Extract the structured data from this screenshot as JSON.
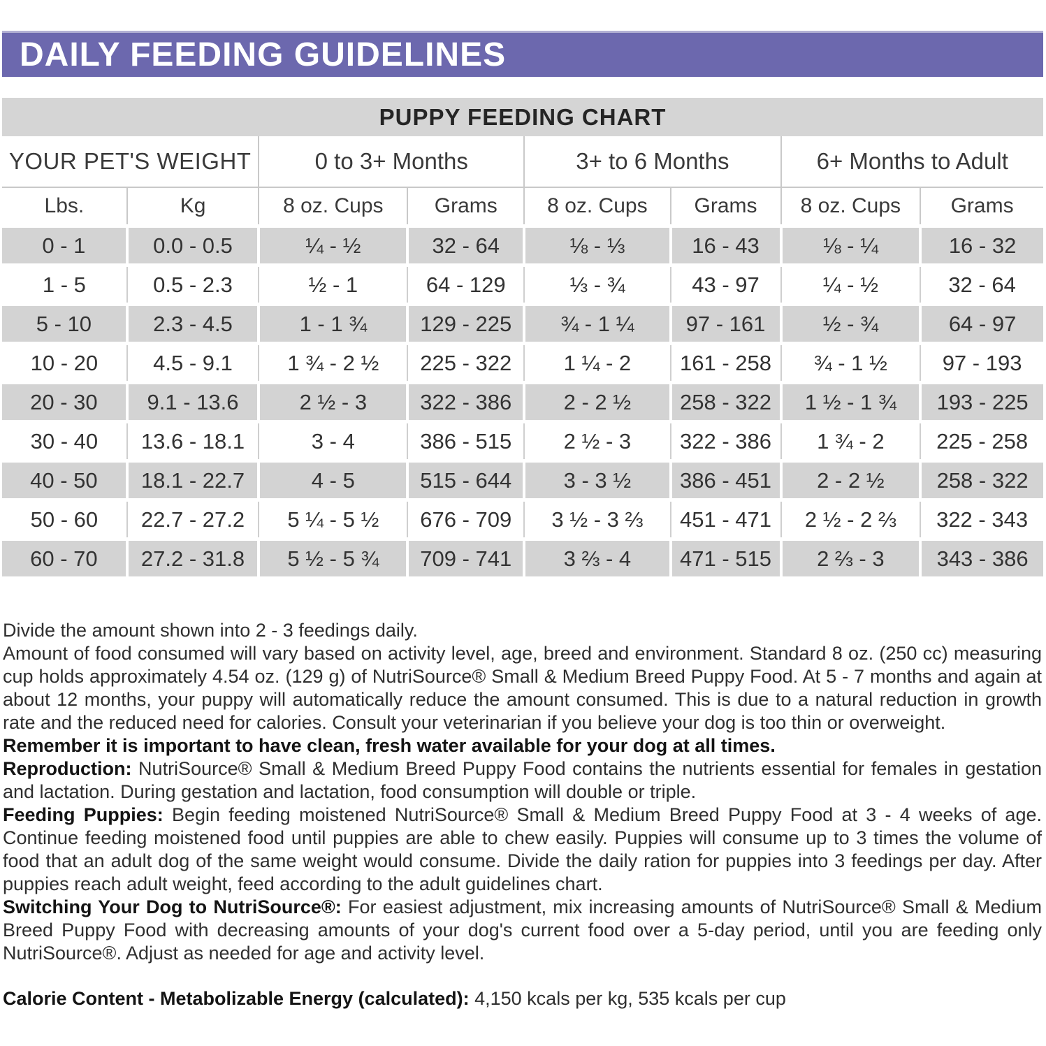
{
  "page_title": "DAILY FEEDING GUIDELINES",
  "colors": {
    "accent_purple": "#6c68ae",
    "bar_gray": "#d5d5d5",
    "row_gray": "#d3d3d3"
  },
  "chart": {
    "title": "PUPPY FEEDING CHART",
    "weight_header": "YOUR PET'S WEIGHT",
    "group_headers": [
      "0 to 3+ Months",
      "3+ to 6 Months",
      "6+ Months to Adult"
    ],
    "sub_headers": [
      "Lbs.",
      "Kg",
      "8 oz. Cups",
      "Grams",
      "8 oz. Cups",
      "Grams",
      "8 oz. Cups",
      "Grams"
    ],
    "rows": [
      [
        "0 - 1",
        "0.0 - 0.5",
        "¼ - ½",
        "32 - 64",
        "⅛ - ⅓",
        "16 - 43",
        "⅛ - ¼",
        "16 - 32"
      ],
      [
        "1 - 5",
        "0.5 - 2.3",
        "½ - 1",
        "64 - 129",
        "⅓ - ¾",
        "43 - 97",
        "¼ - ½",
        "32 - 64"
      ],
      [
        "5 - 10",
        "2.3 - 4.5",
        "1 - 1 ¾",
        "129 - 225",
        "¾ - 1 ¼",
        "97 - 161",
        "½ - ¾",
        "64 - 97"
      ],
      [
        "10 - 20",
        "4.5 - 9.1",
        "1 ¾ - 2 ½",
        "225 - 322",
        "1 ¼ - 2",
        "161 - 258",
        "¾ - 1 ½",
        "97 - 193"
      ],
      [
        "20 - 30",
        "9.1 - 13.6",
        "2 ½ - 3",
        "322 - 386",
        "2 - 2 ½",
        "258 - 322",
        "1 ½ - 1 ¾",
        "193 - 225"
      ],
      [
        "30 - 40",
        "13.6 - 18.1",
        "3 - 4",
        "386 - 515",
        "2 ½ - 3",
        "322 - 386",
        "1 ¾ - 2",
        "225 - 258"
      ],
      [
        "40 - 50",
        "18.1 - 22.7",
        "4 - 5",
        "515 - 644",
        "3 - 3 ½",
        "386 - 451",
        "2 - 2 ½",
        "258 - 322"
      ],
      [
        "50 - 60",
        "22.7 - 27.2",
        "5 ¼ - 5 ½",
        "676 - 709",
        "3 ½ - 3 ⅔",
        "451 - 471",
        "2 ½ - 2 ⅔",
        "322 - 343"
      ],
      [
        "60 - 70",
        "27.2 - 31.8",
        "5 ½ - 5 ¾",
        "709 - 741",
        "3 ⅔ - 4",
        "471 - 515",
        "2 ⅔ - 3",
        "343 - 386"
      ]
    ]
  },
  "notes": {
    "paragraphs": [
      {
        "bold": "",
        "text": "Divide the amount shown into 2 - 3 feedings daily."
      },
      {
        "bold": "",
        "text": "Amount of food consumed will vary based on activity level, age, breed and environment. Standard 8 oz. (250 cc) measuring cup holds approximately 4.54 oz. (129 g) of NutriSource® Small & Medium Breed Puppy Food. At 5 - 7 months and again at about 12 months, your puppy will automatically reduce the amount consumed. This is due to a natural reduction in growth rate and the reduced need for calories. Consult your veterinarian if you believe your dog is too thin or overweight."
      },
      {
        "bold": "Remember it is important to have clean, fresh water available for your dog at all times.",
        "text": ""
      },
      {
        "bold": "Reproduction:",
        "text": " NutriSource® Small & Medium Breed Puppy Food contains the nutrients essential for females in gestation and lactation. During gestation and lactation, food consumption will double or triple."
      },
      {
        "bold": "Feeding Puppies:",
        "text": " Begin feeding moistened NutriSource® Small & Medium Breed Puppy Food at 3 - 4 weeks of age. Continue feeding moistened food until puppies are able to chew easily. Puppies will consume up to 3 times the volume of food that an adult dog of the same weight would consume. Divide the daily ration for puppies into 3 feedings per day. After puppies reach adult weight, feed according to the adult guidelines chart."
      },
      {
        "bold": "Switching Your Dog to NutriSource®:",
        "text": " For easiest adjustment, mix increasing amounts of NutriSource® Small & Medium Breed Puppy Food with decreasing amounts of your dog's current food over a 5-day period, until you are feeding only NutriSource®. Adjust as needed for age and activity level."
      }
    ],
    "calorie": {
      "bold": "Calorie Content - Metabolizable Energy (calculated):",
      "text": " 4,150 kcals per kg, 535 kcals per cup"
    }
  }
}
